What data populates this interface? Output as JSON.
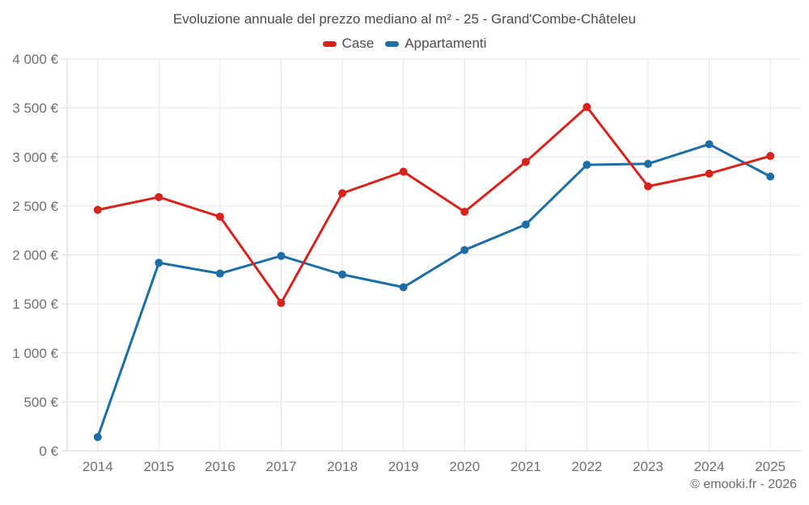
{
  "title": "Evoluzione annuale del prezzo mediano al m² - 25 - Grand'Combe-Châteleu",
  "footer": {
    "copyright": "© emooki.fr - 2026"
  },
  "colors": {
    "case": "#d7231e",
    "appartamenti": "#1c6ea4",
    "gridline": "#e6e6e6",
    "axis_line": "#d6d6d6",
    "axis_label": "#6f6f6f"
  },
  "chart_data": {
    "type": "line",
    "title": "Evoluzione annuale del prezzo mediano al m² - 25 - Grand'Combe-Châteleu",
    "xlabel": "",
    "ylabel": "",
    "categories": [
      "2014",
      "2015",
      "2016",
      "2017",
      "2018",
      "2019",
      "2020",
      "2021",
      "2022",
      "2023",
      "2024",
      "2025"
    ],
    "series": [
      {
        "name": "Case",
        "color": "#d7231e",
        "values": [
          2460,
          2590,
          2390,
          1510,
          2630,
          2850,
          2440,
          2950,
          3510,
          2700,
          2830,
          3010
        ]
      },
      {
        "name": "Appartamenti",
        "color": "#1c6ea4",
        "values": [
          140,
          1920,
          1810,
          1990,
          1800,
          1670,
          2050,
          2310,
          2920,
          2930,
          3130,
          2800
        ]
      }
    ],
    "ylim": [
      0,
      4000
    ],
    "y_tick_step": 500,
    "y_tick_labels": [
      "0 €",
      "500 €",
      "1 000 €",
      "1 500 €",
      "2 000 €",
      "2 500 €",
      "3 000 €",
      "3 500 €",
      "4 000 €"
    ],
    "grid": true,
    "legend_position": "top"
  }
}
